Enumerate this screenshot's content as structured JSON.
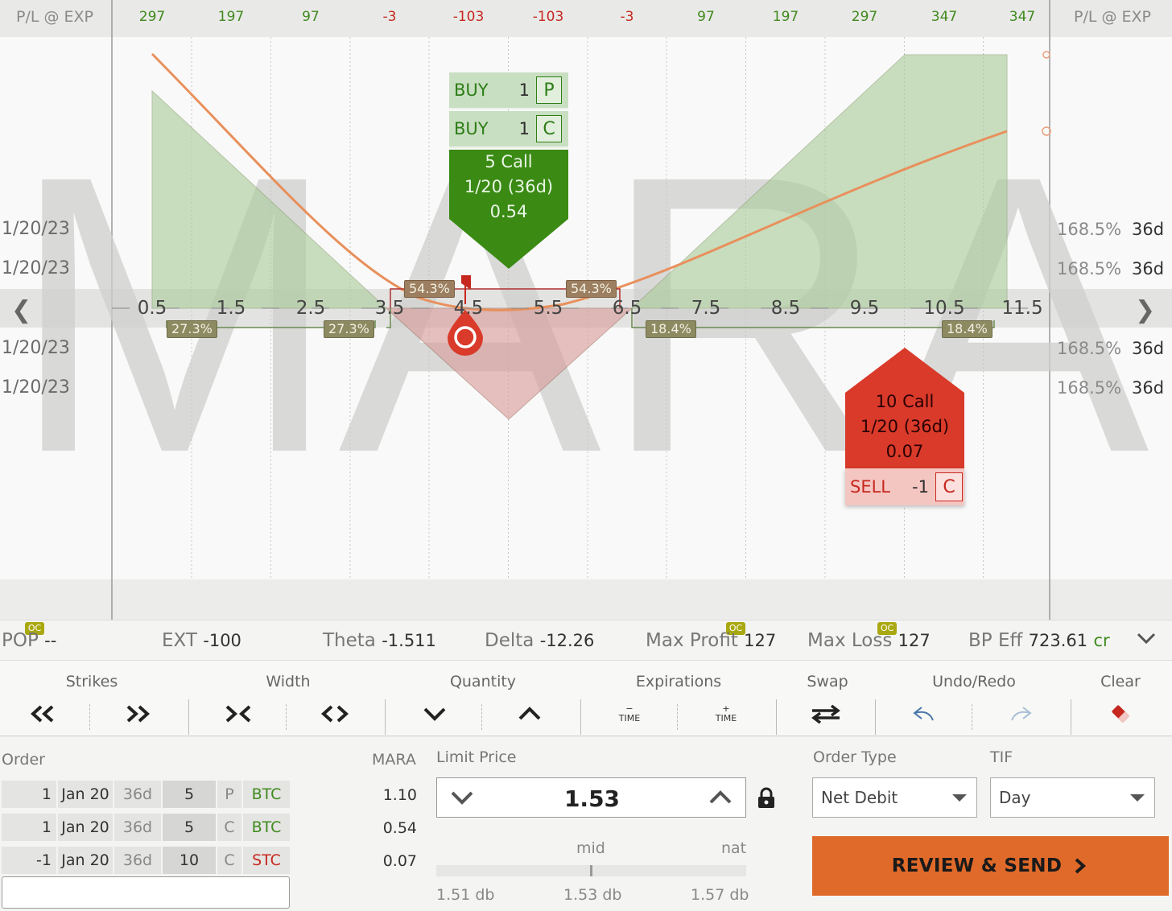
{
  "symbol_watermark": "MARA",
  "pl_header": {
    "label_left": "P/L @ EXP",
    "label_right": "P/L @ EXP",
    "values": [
      "297",
      "197",
      "97",
      "-3",
      "-103",
      "-103",
      "-3",
      "97",
      "197",
      "297",
      "347",
      "347"
    ]
  },
  "strikes": [
    "0.5",
    "1.5",
    "2.5",
    "3.5",
    "4.5",
    "5.5",
    "6.5",
    "7.5",
    "8.5",
    "9.5",
    "10.5",
    "11.5"
  ],
  "expirations_left": [
    "1/20/23",
    "1/20/23",
    "1/20/23",
    "1/20/23"
  ],
  "expirations_right": [
    {
      "iv": "168.5%",
      "dte": "36d"
    },
    {
      "iv": "168.5%",
      "dte": "36d"
    },
    {
      "iv": "168.5%",
      "dte": "36d"
    },
    {
      "iv": "168.5%",
      "dte": "36d"
    }
  ],
  "prob_tags": {
    "left_outer": "27.3%",
    "left_inner": "27.3%",
    "mid_left": "54.3%",
    "mid_right": "54.3%",
    "right_inner": "18.4%",
    "right_outer": "18.4%"
  },
  "green_card": {
    "legs": [
      {
        "action": "BUY",
        "qty": "1",
        "type": "P"
      },
      {
        "action": "BUY",
        "qty": "1",
        "type": "C"
      }
    ],
    "line1": "5 Call",
    "line2": "1/20 (36d)",
    "line3": "0.54"
  },
  "red_card": {
    "line1": "10 Call",
    "line2": "1/20 (36d)",
    "line3": "0.07",
    "leg": {
      "action": "SELL",
      "qty": "-1",
      "type": "C"
    }
  },
  "stats": {
    "oc_badge": "OC",
    "pop_label": "POP",
    "pop_value": "--",
    "ext_label": "EXT",
    "ext_value": "-100",
    "theta_label": "Theta",
    "theta_value": "-1.511",
    "delta_label": "Delta",
    "delta_value": "-12.26",
    "maxprofit_label": "Max Profit",
    "maxprofit_value": "127",
    "maxloss_label": "Max Loss",
    "maxloss_value": "127",
    "bpeff_label": "BP Eff",
    "bpeff_value": "723.61",
    "bpeff_suffix": "cr"
  },
  "toolbar": {
    "strikes": "Strikes",
    "width": "Width",
    "quantity": "Quantity",
    "expirations": "Expirations",
    "swap": "Swap",
    "undo_redo": "Undo/Redo",
    "clear": "Clear",
    "time_minus": "TIME",
    "time_plus": "TIME",
    "minus": "−",
    "plus": "+"
  },
  "order": {
    "label": "Order",
    "symbol": "MARA",
    "legs": [
      {
        "qty": "1",
        "exp": "Jan 20",
        "dte": "36d",
        "strike": "5",
        "type": "P",
        "action": "BTC",
        "price": "1.10"
      },
      {
        "qty": "1",
        "exp": "Jan 20",
        "dte": "36d",
        "strike": "5",
        "type": "C",
        "action": "BTC",
        "price": "0.54"
      },
      {
        "qty": "-1",
        "exp": "Jan 20",
        "dte": "36d",
        "strike": "10",
        "type": "C",
        "action": "STC",
        "price": "0.07"
      }
    ]
  },
  "limit": {
    "label": "Limit Price",
    "value": "1.53",
    "mid_label": "mid",
    "nat_label": "nat",
    "low": "1.51 db",
    "mid": "1.53 db",
    "high": "1.57 db"
  },
  "order_type": {
    "label": "Order Type",
    "value": "Net Debit"
  },
  "tif": {
    "label": "TIF",
    "value": "Day"
  },
  "review_button": "REVIEW & SEND"
}
